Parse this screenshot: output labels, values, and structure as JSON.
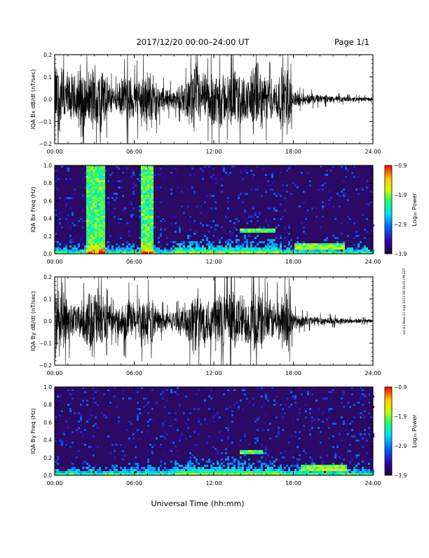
{
  "header": {
    "title": "2017/12/20  00:00–24:00 UT",
    "page": "Page 1/1"
  },
  "footer": {
    "xlabel": "Universal Time (hh:mm)"
  },
  "side_stamp": "ser-41 Wed 23 Aug 2023 08:19:05 PM EST",
  "colors": {
    "trace": "#000000",
    "spectro_background": "#2a0a63",
    "colorbar": [
      "#1a0033",
      "#3300aa",
      "#0066ff",
      "#00ddff",
      "#22ff66",
      "#ccff00",
      "#ffcc00",
      "#ff0000"
    ]
  },
  "chart_data": [
    {
      "type": "line",
      "name": "bx-waveform",
      "ylabel": "IQA Bx dB/dt (nT/sec)",
      "xlim": [
        0,
        24
      ],
      "ylim": [
        -0.2,
        0.2
      ],
      "xticks": [
        "00:00",
        "06:00",
        "12:00",
        "18:00",
        "24:00"
      ],
      "yticks": [
        "−0.2",
        "−0.1",
        "0.0",
        "0.1",
        "0.2"
      ],
      "ytick_values": [
        -0.2,
        -0.1,
        0.0,
        0.1,
        0.2
      ],
      "envelope": {
        "hours": [
          0,
          0.5,
          1,
          1.5,
          2,
          2.5,
          3,
          3.5,
          4,
          4.5,
          5,
          5.5,
          6,
          6.5,
          7,
          7.5,
          8,
          8.5,
          9,
          9.5,
          10,
          10.5,
          11,
          11.5,
          12,
          12.5,
          13,
          13.5,
          14,
          14.5,
          15,
          15.5,
          16,
          16.5,
          17,
          17.5,
          18,
          18.5,
          19,
          19.5,
          20,
          21,
          22,
          23,
          24
        ],
        "amplitude": [
          0.2,
          0.18,
          0.14,
          0.12,
          0.2,
          0.12,
          0.2,
          0.2,
          0.1,
          0.06,
          0.1,
          0.14,
          0.1,
          0.14,
          0.16,
          0.12,
          0.07,
          0.06,
          0.05,
          0.07,
          0.1,
          0.2,
          0.14,
          0.12,
          0.16,
          0.16,
          0.12,
          0.16,
          0.14,
          0.1,
          0.2,
          0.16,
          0.12,
          0.1,
          0.14,
          0.2,
          0.05,
          0.035,
          0.03,
          0.028,
          0.025,
          0.02,
          0.015,
          0.012,
          0.01
        ]
      }
    },
    {
      "type": "heatmap",
      "name": "bx-spectrogram",
      "ylabel": "IQA Bx Freq (Hz)",
      "xlim": [
        0,
        24
      ],
      "ylim": [
        0.0,
        1.0
      ],
      "xticks": [
        "00:00",
        "06:00",
        "12:00",
        "18:00",
        "24:00"
      ],
      "yticks": [
        "0.0",
        "0.2",
        "0.4",
        "0.6",
        "0.8",
        "1.0"
      ],
      "colorbar": {
        "label": "Log₁₀ Power",
        "range": [
          -3.9,
          -0.9
        ],
        "ticks": [
          "−0.9",
          "−1.9",
          "−2.9",
          "−3.9"
        ]
      },
      "features": {
        "broadband_bands_hours": [
          [
            2.3,
            3.7
          ],
          [
            6.5,
            7.3
          ]
        ],
        "emission_bands": [
          {
            "hours": [
              13.9,
              16.5
            ],
            "freq_hz": 0.27
          },
          {
            "hours": [
              18.0,
              21.8
            ],
            "freq_hz": 0.1
          }
        ]
      }
    },
    {
      "type": "line",
      "name": "by-waveform",
      "ylabel": "IQA By dB/dt (nT/sec)",
      "xlim": [
        0,
        24
      ],
      "ylim": [
        -0.2,
        0.2
      ],
      "xticks": [
        "00:00",
        "06:00",
        "12:00",
        "18:00",
        "24:00"
      ],
      "yticks": [
        "−0.2",
        "−0.1",
        "0.0",
        "0.1",
        "0.2"
      ],
      "ytick_values": [
        -0.2,
        -0.1,
        0.0,
        0.1,
        0.2
      ],
      "envelope": {
        "hours": [
          0,
          0.5,
          1,
          1.5,
          2,
          2.5,
          3,
          3.5,
          4,
          4.5,
          5,
          5.5,
          6,
          6.5,
          7,
          7.5,
          8,
          8.5,
          9,
          9.5,
          10,
          10.5,
          11,
          11.5,
          12,
          12.5,
          13,
          13.5,
          14,
          14.5,
          15,
          15.5,
          16,
          16.5,
          17,
          17.5,
          18,
          18.5,
          19,
          19.5,
          20,
          21,
          22,
          23,
          24
        ],
        "amplitude": [
          0.2,
          0.2,
          0.12,
          0.08,
          0.1,
          0.14,
          0.2,
          0.16,
          0.09,
          0.06,
          0.09,
          0.12,
          0.1,
          0.12,
          0.13,
          0.1,
          0.06,
          0.05,
          0.05,
          0.07,
          0.1,
          0.18,
          0.15,
          0.12,
          0.16,
          0.2,
          0.13,
          0.17,
          0.15,
          0.12,
          0.17,
          0.16,
          0.12,
          0.1,
          0.13,
          0.18,
          0.05,
          0.035,
          0.03,
          0.028,
          0.025,
          0.02,
          0.015,
          0.012,
          0.01
        ]
      }
    },
    {
      "type": "heatmap",
      "name": "by-spectrogram",
      "ylabel": "IQA By Freq (Hz)",
      "xlim": [
        0,
        24
      ],
      "ylim": [
        0.0,
        1.0
      ],
      "xticks": [
        "00:00",
        "06:00",
        "12:00",
        "18:00",
        "24:00"
      ],
      "yticks": [
        "0.0",
        "0.2",
        "0.4",
        "0.6",
        "0.8",
        "1.0"
      ],
      "colorbar": {
        "label": "Log₁₀ Power",
        "range": [
          -3.9,
          -0.9
        ],
        "ticks": [
          "−0.9",
          "−1.9",
          "−2.9",
          "−3.9"
        ]
      },
      "features": {
        "broadband_bands_hours": [],
        "emission_bands": [
          {
            "hours": [
              13.9,
              15.6
            ],
            "freq_hz": 0.27
          },
          {
            "hours": [
              18.5,
              22.0
            ],
            "freq_hz": 0.1
          }
        ]
      }
    }
  ]
}
